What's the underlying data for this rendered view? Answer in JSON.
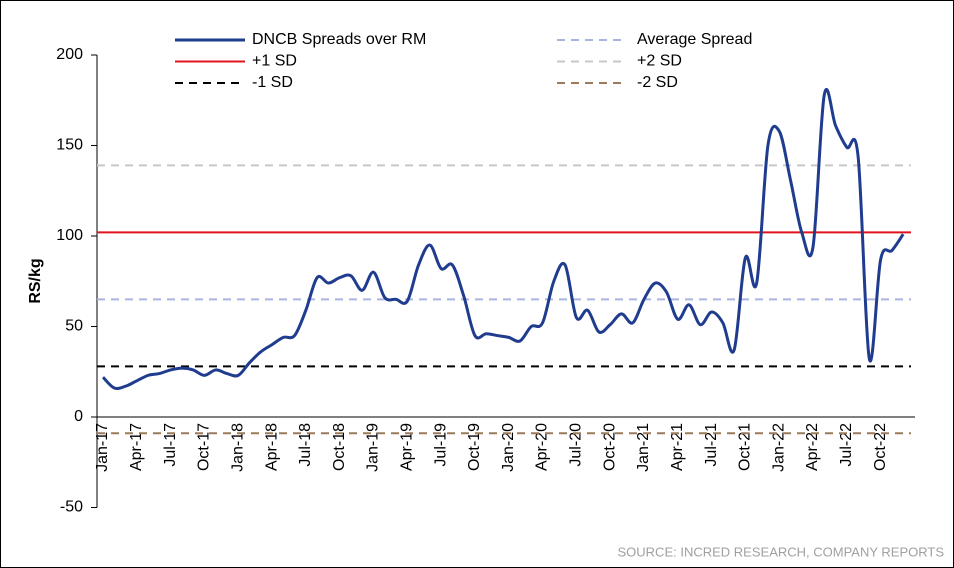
{
  "chart_data": {
    "type": "line",
    "y_label": "RS/kg",
    "source": "SOURCE: INCRED RESEARCH, COMPANY REPORTS",
    "categories": [
      "Jan-17",
      null,
      null,
      "Apr-17",
      null,
      null,
      "Jul-17",
      null,
      null,
      "Oct-17",
      null,
      null,
      "Jan-18",
      null,
      null,
      "Apr-18",
      null,
      null,
      "Jul-18",
      null,
      null,
      "Oct-18",
      null,
      null,
      "Jan-19",
      null,
      null,
      "Apr-19",
      null,
      null,
      "Jul-19",
      null,
      null,
      "Oct-19",
      null,
      null,
      "Jan-20",
      null,
      null,
      "Apr-20",
      null,
      null,
      "Jul-20",
      null,
      null,
      "Oct-20",
      null,
      null,
      "Jan-21",
      null,
      null,
      "Apr-21",
      null,
      null,
      "Jul-21",
      null,
      null,
      "Oct-21",
      null,
      null,
      "Jan-22",
      null,
      null,
      "Apr-22",
      null,
      null,
      "Jul-22",
      null,
      null,
      "Oct-22",
      null,
      null
    ],
    "series": [
      {
        "name": "DNCB Spreads over RM",
        "color": "#1f3c8f",
        "values": [
          22,
          16,
          17,
          20,
          23,
          24,
          26,
          27,
          26,
          23,
          26,
          24,
          23,
          30,
          36,
          40,
          44,
          45,
          59,
          77,
          74,
          77,
          78,
          70,
          80,
          66,
          65,
          64,
          84,
          95,
          82,
          84,
          67,
          45,
          46,
          45,
          44,
          42,
          50,
          52,
          75,
          84,
          55,
          59,
          47,
          51,
          57,
          52,
          65,
          74,
          69,
          54,
          62,
          51,
          58,
          52,
          37,
          88,
          74,
          150,
          158,
          131,
          102,
          94,
          178,
          161,
          149,
          144,
          32,
          87,
          92,
          101
        ]
      }
    ],
    "reference_lines": [
      {
        "name": "Average Spread",
        "value": 65,
        "color": "#a9b4e0",
        "dashed": true
      },
      {
        "name": "+1 SD",
        "value": 102,
        "color": "#e0141e",
        "dashed": false
      },
      {
        "name": "+2 SD",
        "value": 139,
        "color": "#c8c8c8",
        "dashed": true
      },
      {
        "name": "-1 SD",
        "value": 28,
        "color": "#000000",
        "dashed": true
      },
      {
        "name": "-2 SD",
        "value": -9,
        "color": "#9c7a5a",
        "dashed": true
      }
    ],
    "ylim": [
      -50,
      200
    ],
    "yticks": [
      -50,
      0,
      50,
      100,
      150,
      200
    ]
  }
}
